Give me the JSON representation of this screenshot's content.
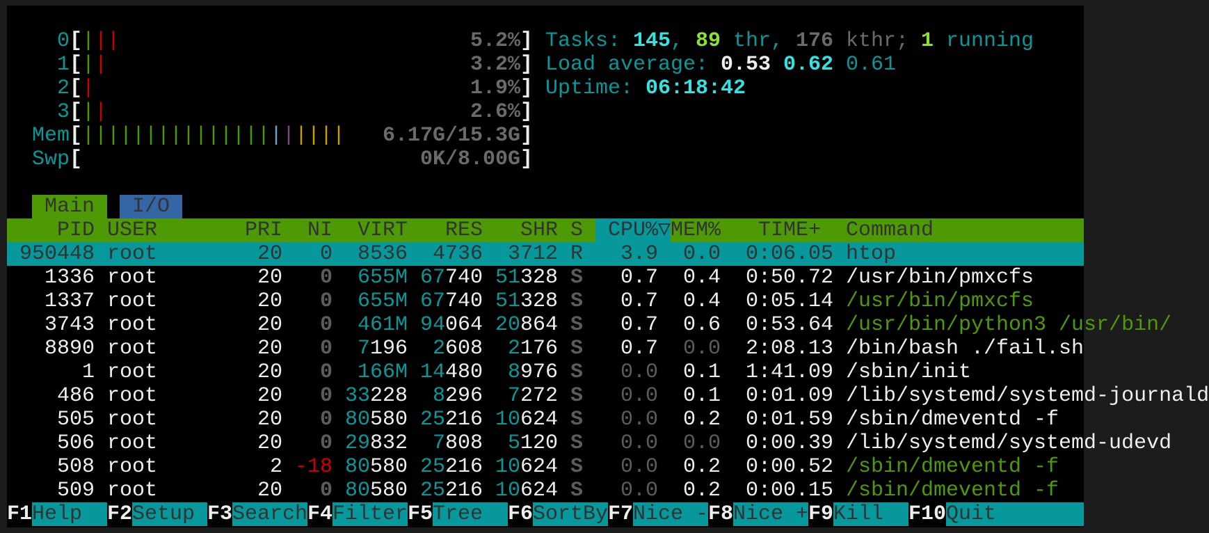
{
  "colors": {
    "cyan": "#06989a",
    "bright_cyan": "#34e2e2",
    "green": "#4e9a06",
    "bright_green": "#8ae234",
    "white": "#eeeeec",
    "gray": "#5c5c5c",
    "meter_gray": "#6a6a6a",
    "red": "#cc0000",
    "blue": "#729fcf",
    "magenta": "#75507b",
    "yellow": "#c4a000",
    "dark_text": "#333333",
    "tab_io_bg": "#3465a4"
  },
  "meters": {
    "cpus": [
      {
        "label": "0",
        "value": "5.2%",
        "bars": [
          "green",
          "red",
          "red"
        ]
      },
      {
        "label": "1",
        "value": "3.2%",
        "bars": [
          "green",
          "red"
        ]
      },
      {
        "label": "2",
        "value": "1.9%",
        "bars": [
          "red"
        ]
      },
      {
        "label": "3",
        "value": "2.6%",
        "bars": [
          "green",
          "red"
        ]
      }
    ],
    "mem": {
      "label": "Mem",
      "value": "6.17G/15.3G",
      "segments": [
        {
          "color": "green",
          "count": 15
        },
        {
          "color": "blue",
          "count": 1
        },
        {
          "color": "magenta",
          "count": 1
        },
        {
          "color": "yellow",
          "count": 4
        }
      ]
    },
    "swp": {
      "label": "Swp",
      "value": "0K/8.00G",
      "segments": []
    }
  },
  "info": {
    "tasks": [
      {
        "t": "Tasks: ",
        "c": "cyan"
      },
      {
        "t": "145",
        "c": "bright_cyan",
        "b": true
      },
      {
        "t": ", ",
        "c": "cyan"
      },
      {
        "t": "89",
        "c": "bright_green",
        "b": true
      },
      {
        "t": " thr, ",
        "c": "cyan"
      },
      {
        "t": "176",
        "c": "meter_gray",
        "b": true
      },
      {
        "t": " kthr; ",
        "c": "meter_gray"
      },
      {
        "t": "1",
        "c": "bright_green",
        "b": true
      },
      {
        "t": " running",
        "c": "cyan"
      }
    ],
    "load": [
      {
        "t": "Load average: ",
        "c": "cyan"
      },
      {
        "t": "0.53",
        "c": "white",
        "b": true
      },
      {
        "t": " ",
        "c": "cyan"
      },
      {
        "t": "0.62",
        "c": "bright_cyan",
        "b": true
      },
      {
        "t": " ",
        "c": "cyan"
      },
      {
        "t": "0.61",
        "c": "cyan"
      }
    ],
    "uptime": [
      {
        "t": "Uptime: ",
        "c": "cyan"
      },
      {
        "t": "06:18:42",
        "c": "bright_cyan",
        "b": true
      }
    ]
  },
  "tabs": [
    {
      "label": "Main",
      "active": true
    },
    {
      "label": "I/O",
      "active": false
    }
  ],
  "columns": {
    "pid": "PID",
    "user": "USER",
    "pri": "PRI",
    "ni": "NI",
    "virt": "VIRT",
    "res": "RES",
    "shr": "SHR",
    "s": "S",
    "cpu": "CPU%",
    "sort_indicator": "▽",
    "mem": "MEM%",
    "time": "TIME+",
    "command": "Command"
  },
  "processes": [
    {
      "pid": "950448",
      "user": "root",
      "pri": "20",
      "ni": "0",
      "virt": "8536",
      "res": "4736",
      "shr": "3712",
      "s": "R",
      "cpu": "3.9",
      "mem": "0.0",
      "time": "0:06.05",
      "command": "htop",
      "selected": true
    },
    {
      "pid": "1336",
      "user": "root",
      "pri": "20",
      "ni": "0",
      "virt": "655M",
      "res": "67740",
      "shr": "51328",
      "s": "S",
      "cpu": "0.7",
      "mem": "0.4",
      "time": "0:50.72",
      "command": "/usr/bin/pmxcfs"
    },
    {
      "pid": "1337",
      "user": "root",
      "pri": "20",
      "ni": "0",
      "virt": "655M",
      "res": "67740",
      "shr": "51328",
      "s": "S",
      "cpu": "0.7",
      "mem": "0.4",
      "time": "0:05.14",
      "command": "/usr/bin/pmxcfs",
      "thread": true
    },
    {
      "pid": "3743",
      "user": "root",
      "pri": "20",
      "ni": "0",
      "virt": "461M",
      "res": "94064",
      "shr": "20864",
      "s": "S",
      "cpu": "0.7",
      "mem": "0.6",
      "time": "0:53.64",
      "command": "/usr/bin/python3 /usr/bin/",
      "thread": true
    },
    {
      "pid": "8890",
      "user": "root",
      "pri": "20",
      "ni": "0",
      "virt": "7196",
      "res": "2608",
      "shr": "2176",
      "s": "S",
      "cpu": "0.7",
      "mem": "0.0",
      "time": "2:08.13",
      "command": "/bin/bash ./fail.sh"
    },
    {
      "pid": "1",
      "user": "root",
      "pri": "20",
      "ni": "0",
      "virt": "166M",
      "res": "14480",
      "shr": "8976",
      "s": "S",
      "cpu": "0.0",
      "mem": "0.1",
      "time": "1:41.09",
      "command": "/sbin/init"
    },
    {
      "pid": "486",
      "user": "root",
      "pri": "20",
      "ni": "0",
      "virt": "33228",
      "res": "8296",
      "shr": "7272",
      "s": "S",
      "cpu": "0.0",
      "mem": "0.1",
      "time": "0:01.09",
      "command": "/lib/systemd/systemd-journald"
    },
    {
      "pid": "505",
      "user": "root",
      "pri": "20",
      "ni": "0",
      "virt": "80580",
      "res": "25216",
      "shr": "10624",
      "s": "S",
      "cpu": "0.0",
      "mem": "0.2",
      "time": "0:01.59",
      "command": "/sbin/dmeventd -f"
    },
    {
      "pid": "506",
      "user": "root",
      "pri": "20",
      "ni": "0",
      "virt": "29832",
      "res": "7808",
      "shr": "5120",
      "s": "S",
      "cpu": "0.0",
      "mem": "0.0",
      "time": "0:00.39",
      "command": "/lib/systemd/systemd-udevd"
    },
    {
      "pid": "508",
      "user": "root",
      "pri": "2",
      "ni": "-18",
      "virt": "80580",
      "res": "25216",
      "shr": "10624",
      "s": "S",
      "cpu": "0.0",
      "mem": "0.2",
      "time": "0:00.52",
      "command": "/sbin/dmeventd -f",
      "thread": true
    },
    {
      "pid": "509",
      "user": "root",
      "pri": "20",
      "ni": "0",
      "virt": "80580",
      "res": "25216",
      "shr": "10624",
      "s": "S",
      "cpu": "0.0",
      "mem": "0.2",
      "time": "0:00.15",
      "command": "/sbin/dmeventd -f",
      "thread": true
    }
  ],
  "footer": [
    {
      "key": "F1",
      "label": "Help"
    },
    {
      "key": "F2",
      "label": "Setup"
    },
    {
      "key": "F3",
      "label": "Search"
    },
    {
      "key": "F4",
      "label": "Filter"
    },
    {
      "key": "F5",
      "label": "Tree"
    },
    {
      "key": "F6",
      "label": "SortBy"
    },
    {
      "key": "F7",
      "label": "Nice -"
    },
    {
      "key": "F8",
      "label": "Nice +"
    },
    {
      "key": "F9",
      "label": "Kill"
    },
    {
      "key": "F10",
      "label": "Quit"
    }
  ]
}
